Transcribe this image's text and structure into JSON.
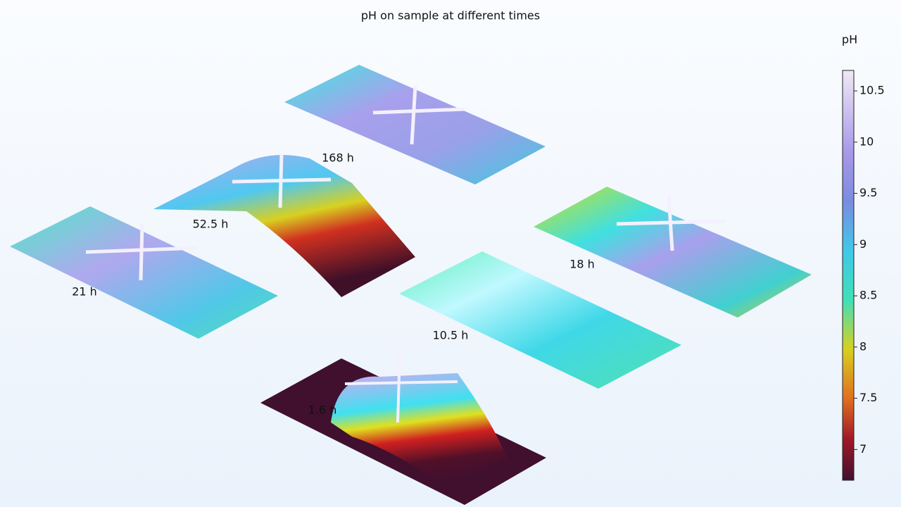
{
  "title": "pH on sample at different times",
  "colorbar": {
    "title": "pH",
    "clim": [
      6.7,
      10.7
    ],
    "ticks": [
      10.5,
      10,
      9.5,
      9,
      8.5,
      8,
      7.5,
      7
    ]
  },
  "labels": [
    "168 h",
    "52.5 h",
    "21 h",
    "18 h",
    "10.5 h",
    "1.6 h"
  ]
}
